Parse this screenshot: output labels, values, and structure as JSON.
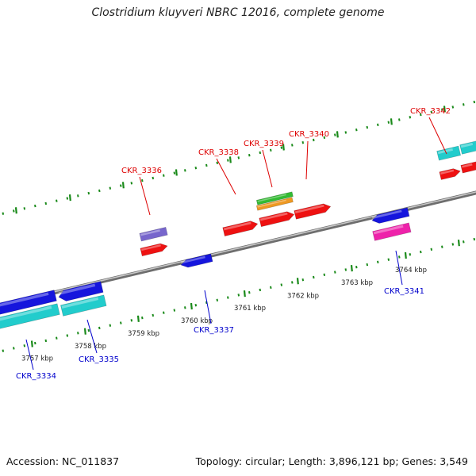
{
  "title": "Clostridium kluyveri NBRC 12016, complete genome",
  "accession_text": "Accession: NC_011837",
  "summary_text": "Topology: circular; Length: 3,896,121 bp; Genes: 3,549",
  "colors": {
    "backbone": "#8c8c8c",
    "tick": "#1a8a1a",
    "forward_label": "#dd0000",
    "reverse_label": "#0000cc",
    "red": "#ee1111",
    "blue": "#1515dd",
    "cyan": "#22cccc",
    "purple": "#7766cc",
    "green": "#33bb33",
    "orange": "#ee9922",
    "magenta": "#ee22aa"
  },
  "kbp_labels": [
    "3757 kbp",
    "3758 kbp",
    "3759 kbp",
    "3760 kbp",
    "3761 kbp",
    "3762 kbp",
    "3763 kbp",
    "3764 kbp"
  ],
  "gene_labels": [
    {
      "id": "CKR_3334",
      "strand": "reverse"
    },
    {
      "id": "CKR_3335",
      "strand": "reverse"
    },
    {
      "id": "CKR_3336",
      "strand": "forward"
    },
    {
      "id": "CKR_3337",
      "strand": "reverse"
    },
    {
      "id": "CKR_3338",
      "strand": "forward"
    },
    {
      "id": "CKR_3339",
      "strand": "forward"
    },
    {
      "id": "CKR_3340",
      "strand": "forward"
    },
    {
      "id": "CKR_3341",
      "strand": "reverse"
    },
    {
      "id": "CKR_3342",
      "strand": "forward"
    }
  ]
}
